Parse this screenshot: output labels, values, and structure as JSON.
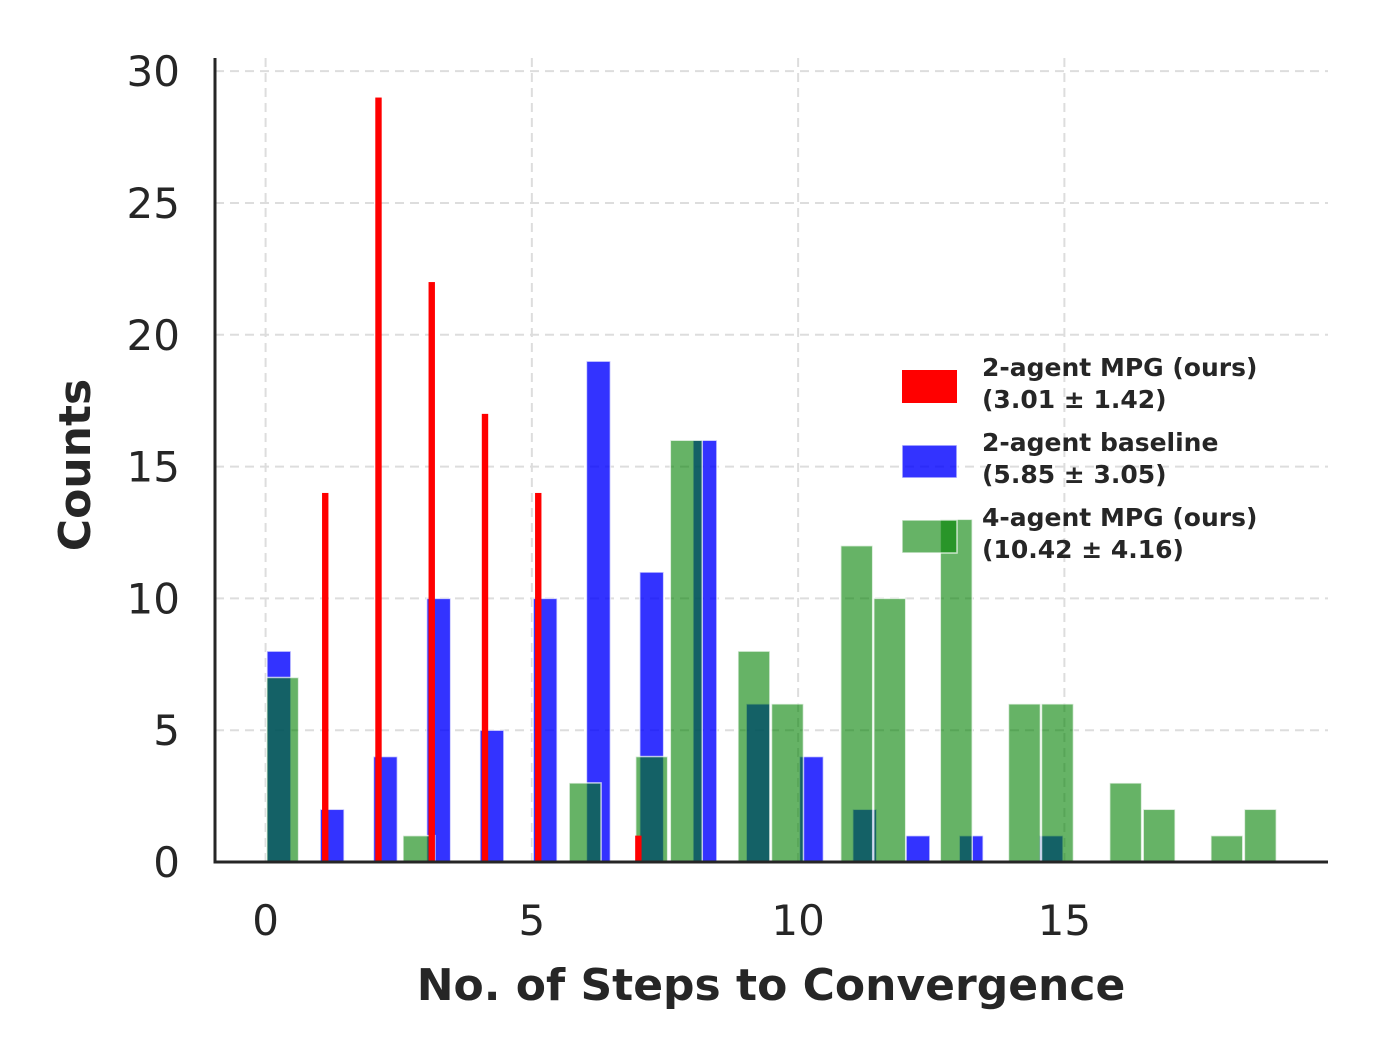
{
  "chart_data": {
    "type": "bar",
    "title": "",
    "xlabel": "No. of Steps to Convergence",
    "ylabel": "Counts",
    "xlim": [
      -0.95,
      19.95
    ],
    "ylim": [
      0,
      30.5
    ],
    "xticks": [
      0,
      5,
      10,
      15
    ],
    "yticks": [
      0,
      5,
      10,
      15,
      20,
      25,
      30
    ],
    "grid": true,
    "legend_position": "center-right",
    "series": [
      {
        "name": "2-agent baseline",
        "legend_line1": "2-agent baseline",
        "legend_line2": "(5.85 ± 3.05)",
        "color": "#0000ff",
        "opacity": 0.8,
        "bar_width": 0.45,
        "x": [
          0.25,
          1.25,
          2.25,
          3.25,
          4.25,
          5.25,
          6.25,
          7.25,
          8.25,
          9.25,
          10.25,
          11.25,
          12.25,
          13.25,
          14.75
        ],
        "values": [
          8,
          2,
          4,
          10,
          5,
          10,
          19,
          11,
          16,
          6,
          4,
          2,
          1,
          1,
          1
        ]
      },
      {
        "name": "4-agent MPG (ours)",
        "legend_line1": "4-agent MPG (ours)",
        "legend_line2": "(10.42 ± 4.16)",
        "color": "#008000",
        "opacity": 0.6,
        "bar_width": 0.6,
        "x": [
          0.32,
          2.88,
          6.0,
          7.25,
          7.9,
          9.17,
          9.8,
          11.1,
          11.72,
          12.97,
          14.25,
          14.87,
          16.15,
          16.78,
          18.05,
          18.68
        ],
        "values": [
          7,
          1,
          3,
          4,
          16,
          8,
          6,
          12,
          10,
          13,
          6,
          6,
          3,
          2,
          1,
          2
        ]
      },
      {
        "name": "2-agent MPG (ours)",
        "legend_line1": "2-agent MPG (ours)",
        "legend_line2": "(3.01 ± 1.42)",
        "color": "#ff0000",
        "opacity": 1.0,
        "bar_width": 0.12,
        "x": [
          1.12,
          2.12,
          3.12,
          4.12,
          5.12,
          7.0
        ],
        "values": [
          14,
          29,
          22,
          17,
          14,
          1
        ]
      }
    ],
    "legend_order": [
      "2-agent MPG (ours)",
      "2-agent baseline",
      "4-agent MPG (ours)"
    ]
  }
}
